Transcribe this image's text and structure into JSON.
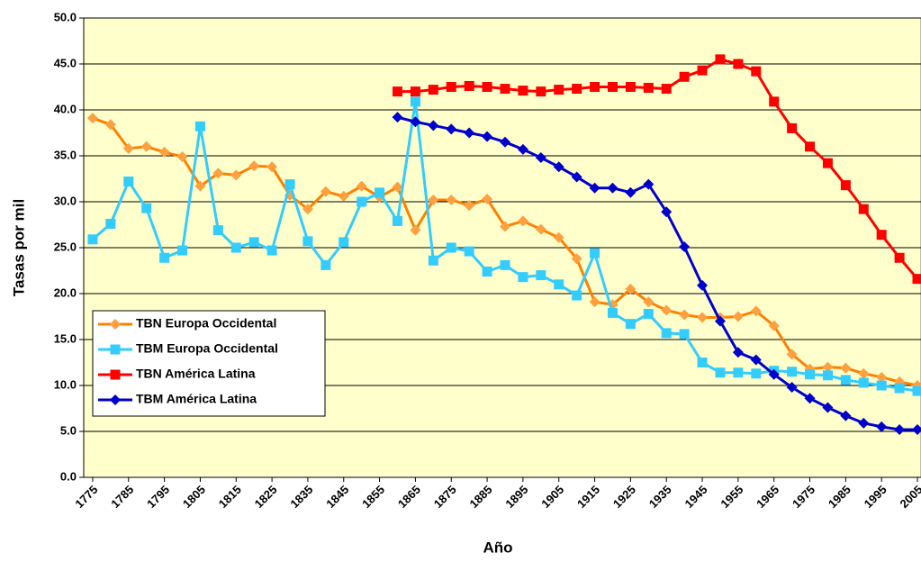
{
  "chart_data": {
    "type": "line",
    "xlabel": "Año",
    "ylabel": "Tasas por mil",
    "x": [
      1775,
      1780,
      1785,
      1790,
      1795,
      1800,
      1805,
      1810,
      1815,
      1820,
      1825,
      1830,
      1835,
      1840,
      1845,
      1850,
      1855,
      1860,
      1865,
      1870,
      1875,
      1880,
      1885,
      1890,
      1895,
      1900,
      1905,
      1910,
      1915,
      1920,
      1925,
      1930,
      1935,
      1940,
      1945,
      1950,
      1955,
      1960,
      1965,
      1970,
      1975,
      1980,
      1985,
      1990,
      1995,
      2000,
      2005
    ],
    "series": [
      {
        "name": "TBN Europa Occidental",
        "color": "#FF8000",
        "marker_color": "#FFA040",
        "marker": "diamond",
        "values": [
          39.1,
          38.4,
          35.8,
          36.0,
          35.4,
          34.9,
          31.7,
          33.1,
          32.9,
          33.9,
          33.8,
          30.7,
          29.2,
          31.1,
          30.6,
          31.7,
          30.5,
          31.6,
          26.9,
          30.2,
          30.2,
          29.6,
          30.3,
          27.3,
          27.9,
          27.0,
          26.1,
          23.8,
          19.1,
          18.8,
          20.5,
          19.1,
          18.2,
          17.7,
          17.4,
          17.4,
          17.5,
          18.1,
          16.5,
          13.4,
          11.8,
          12.0,
          11.9,
          11.3,
          10.9,
          10.4,
          10.0
        ]
      },
      {
        "name": "TBM Europa Occidental",
        "color": "#33CCFF",
        "marker_color": "#33CCFF",
        "marker": "square",
        "values": [
          25.9,
          27.6,
          32.2,
          29.3,
          23.9,
          24.7,
          38.2,
          26.9,
          25.0,
          25.6,
          24.7,
          31.9,
          25.7,
          23.1,
          25.6,
          30.0,
          31.0,
          27.9,
          40.9,
          23.6,
          25.0,
          24.6,
          22.4,
          23.1,
          21.8,
          22.0,
          21.0,
          19.8,
          24.4,
          17.9,
          16.7,
          17.8,
          15.7,
          15.6,
          12.5,
          11.4,
          11.4,
          11.3,
          11.6,
          11.5,
          11.2,
          11.1,
          10.6,
          10.3,
          10.0,
          9.7,
          9.4
        ]
      },
      {
        "name": "TBN América Latina",
        "color": "#FF0000",
        "marker_color": "#FF0000",
        "marker": "square",
        "values": [
          null,
          null,
          null,
          null,
          null,
          null,
          null,
          null,
          null,
          null,
          null,
          null,
          null,
          null,
          null,
          null,
          null,
          42.0,
          42.0,
          42.2,
          42.5,
          42.6,
          42.5,
          42.3,
          42.1,
          42.0,
          42.2,
          42.3,
          42.5,
          42.5,
          42.5,
          42.4,
          42.3,
          43.6,
          44.3,
          45.5,
          45.0,
          44.2,
          40.9,
          38.0,
          36.0,
          34.2,
          31.8,
          29.2,
          26.4,
          23.9,
          21.6
        ]
      },
      {
        "name": "TBM América Latina",
        "color": "#0000CC",
        "marker_color": "#0000CC",
        "marker": "diamond",
        "values": [
          null,
          null,
          null,
          null,
          null,
          null,
          null,
          null,
          null,
          null,
          null,
          null,
          null,
          null,
          null,
          null,
          null,
          39.2,
          38.7,
          38.3,
          37.9,
          37.5,
          37.1,
          36.5,
          35.7,
          34.8,
          33.8,
          32.7,
          31.5,
          31.5,
          31.0,
          31.9,
          28.9,
          25.1,
          20.9,
          17.0,
          13.6,
          12.8,
          11.2,
          9.8,
          8.6,
          7.6,
          6.7,
          5.9,
          5.5,
          5.2,
          5.2
        ]
      }
    ],
    "xlim": [
      1772.5,
      2006
    ],
    "xticks": [
      1775,
      1785,
      1795,
      1805,
      1815,
      1825,
      1835,
      1845,
      1855,
      1865,
      1875,
      1885,
      1895,
      1905,
      1915,
      1925,
      1935,
      1945,
      1955,
      1965,
      1975,
      1985,
      1995,
      2005
    ],
    "ylim": [
      0,
      50
    ],
    "yticks": [
      {
        "value": 0,
        "label": "0.0"
      },
      {
        "value": 5,
        "label": "5.0"
      },
      {
        "value": 10,
        "label": "10.0"
      },
      {
        "value": 15,
        "label": "15.0"
      },
      {
        "value": 20,
        "label": "20.0"
      },
      {
        "value": 25,
        "label": "25.0"
      },
      {
        "value": 30,
        "label": "30.0"
      },
      {
        "value": 35,
        "label": "35.0"
      },
      {
        "value": 40,
        "label": "40.0"
      },
      {
        "value": 45,
        "label": "45.0"
      },
      {
        "value": 50,
        "label": "50.0"
      }
    ],
    "grid": true,
    "legend": "lower left",
    "plot_background": "#FFFFCC"
  }
}
